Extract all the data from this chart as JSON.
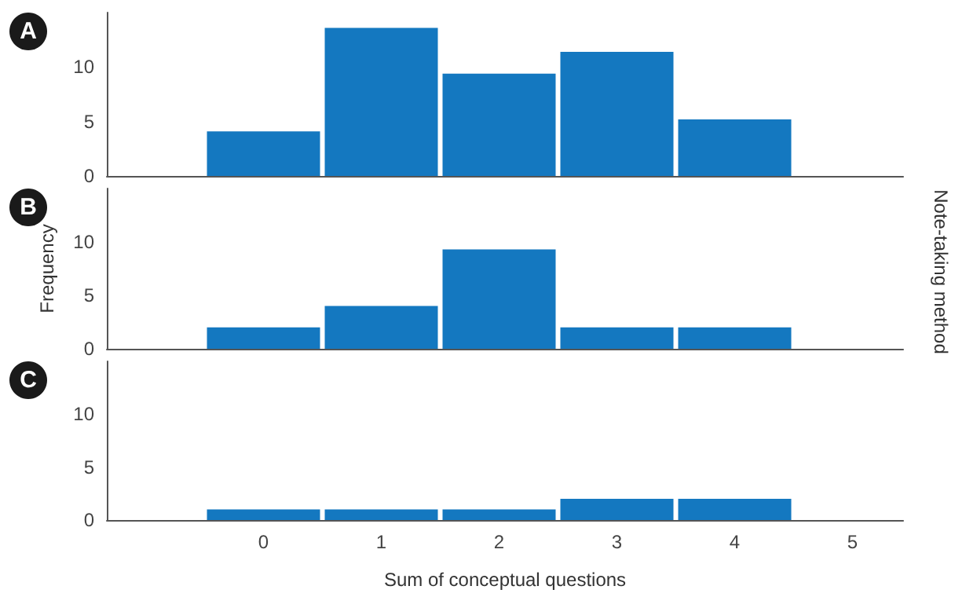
{
  "chart_data": [
    {
      "type": "histogram",
      "title": "A",
      "bins": [
        -0.5,
        0.5,
        1.5,
        2.5,
        3.5,
        4.5
      ],
      "values": [
        4.1,
        13.6,
        9.4,
        11.4,
        5.2
      ],
      "color": "#1478c0",
      "xlim": [
        -1.33,
        5.43
      ],
      "xticks": [
        0,
        1,
        2,
        3,
        4,
        5
      ],
      "ylim": [
        0,
        15
      ],
      "yticks": [
        0,
        5,
        10
      ],
      "tick_labels": "y",
      "grid": false
    },
    {
      "type": "histogram",
      "title": "B",
      "ylabel": "Frequency",
      "y2label": "Note-taking method",
      "bins": [
        -0.5,
        0.5,
        1.5,
        2.5,
        3.5,
        4.5
      ],
      "values": [
        2,
        4,
        9.3,
        2,
        2
      ],
      "color": "#1478c0",
      "xlim": [
        -1.33,
        5.43
      ],
      "xticks": [
        0,
        1,
        2,
        3,
        4,
        5
      ],
      "ylim": [
        0,
        15
      ],
      "yticks": [
        0,
        5,
        10
      ],
      "tick_labels": "y",
      "grid": false
    },
    {
      "type": "histogram",
      "title": "C",
      "xlabel": "Sum of conceptual questions",
      "bins": [
        -0.5,
        0.5,
        1.5,
        2.5,
        3.5,
        4.5
      ],
      "values": [
        1,
        1,
        1,
        2,
        2
      ],
      "color": "#1478c0",
      "xlim": [
        -1.33,
        5.43
      ],
      "xticks": [
        0,
        1,
        2,
        3,
        4,
        5
      ],
      "ylim": [
        0,
        15
      ],
      "yticks": [
        0,
        5,
        10
      ],
      "grid": false
    }
  ]
}
